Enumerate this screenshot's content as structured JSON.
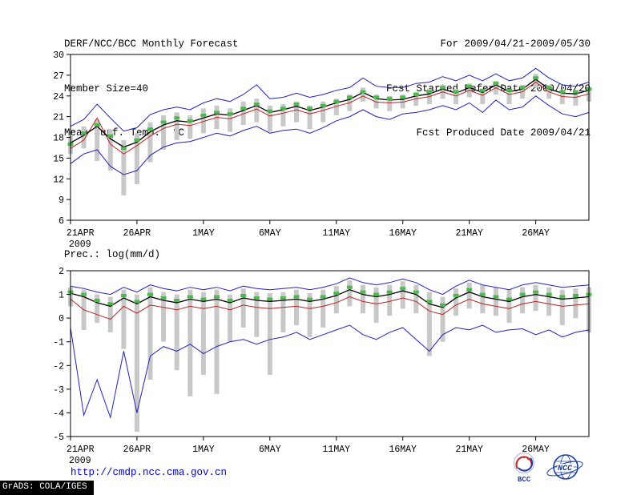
{
  "header": {
    "title": "DERF/NCC/BCC Monthly Forecast",
    "member_size": "Member Size=40",
    "temp_chart_label": "Mean Surf. Temp.: °C",
    "forecast_range": "For 2009/04/21-2009/05/30",
    "refer_date": "Fcst Started Refer Date 2009/04/20",
    "produced_date": "Fcst Produced Date 2009/04/21"
  },
  "precip_chart_label": "Prec.: log(mm/d)",
  "footer": {
    "url": "http://cmdp.ncc.cma.gov.cn",
    "bcc_logo_label": "BCC",
    "ncc_logo_label": "NCC",
    "credit": "GrADS: COLA/IGES"
  },
  "chart_data": [
    {
      "type": "line",
      "title": "Mean Surf. Temp.: °C",
      "ylabel": "°C",
      "ylim": [
        6,
        30
      ],
      "yticks": [
        6,
        9,
        12,
        15,
        18,
        21,
        24,
        27,
        30
      ],
      "x_days": 40,
      "xticks": [
        {
          "day": 0,
          "label": "21APR",
          "sublabel": "2009"
        },
        {
          "day": 5,
          "label": "26APR"
        },
        {
          "day": 10,
          "label": "1MAY"
        },
        {
          "day": 15,
          "label": "6MAY"
        },
        {
          "day": 20,
          "label": "11MAY"
        },
        {
          "day": 25,
          "label": "16MAY"
        },
        {
          "day": 30,
          "label": "21MAY"
        },
        {
          "day": 35,
          "label": "26MAY"
        }
      ],
      "bars": {
        "name": "ensemble-spread-bars",
        "color": "#c8c8c8",
        "low": [
          15.6,
          16.4,
          14.6,
          13.2,
          9.6,
          11.2,
          14.4,
          16.2,
          17.6,
          17.8,
          18.6,
          19.2,
          18.8,
          19.8,
          20.2,
          18.8,
          19.6,
          20.2,
          19.2,
          20.2,
          21.2,
          21.8,
          23.2,
          22.2,
          21.8,
          22.2,
          22.6,
          22.8,
          23.6,
          22.8,
          23.8,
          22.8,
          24.2,
          22.8,
          23.6,
          25.2,
          23.6,
          22.8,
          22.6,
          23.2
        ],
        "high": [
          18.2,
          19.6,
          20.6,
          19.2,
          17.6,
          18.6,
          20.2,
          21.2,
          21.6,
          21.2,
          22.2,
          22.6,
          22.2,
          23.2,
          23.6,
          22.6,
          22.8,
          23.2,
          22.6,
          23.2,
          23.6,
          24.2,
          25.2,
          24.2,
          24.0,
          24.2,
          24.6,
          25.0,
          25.6,
          25.0,
          25.8,
          25.0,
          26.2,
          25.0,
          25.6,
          27.2,
          25.6,
          24.8,
          24.8,
          25.2
        ]
      },
      "series": [
        {
          "name": "ensemble-max",
          "style": "line",
          "color": "#2222bb",
          "width": 1,
          "values": [
            19.6,
            20.6,
            22.8,
            20.8,
            18.9,
            19.4,
            21.3,
            22.0,
            22.4,
            22.0,
            23.0,
            23.6,
            23.2,
            24.2,
            25.6,
            23.6,
            23.8,
            24.4,
            23.8,
            24.2,
            24.8,
            25.2,
            26.6,
            25.4,
            25.2,
            25.2,
            25.8,
            26.0,
            26.8,
            26.2,
            27.0,
            26.2,
            27.2,
            26.2,
            26.6,
            28.0,
            26.6,
            25.6,
            25.4,
            26.0
          ]
        },
        {
          "name": "ensemble-min",
          "style": "line",
          "color": "#2222bb",
          "width": 1,
          "values": [
            14.2,
            15.6,
            16.2,
            13.8,
            12.6,
            13.2,
            15.4,
            16.6,
            17.2,
            17.4,
            18.0,
            18.6,
            18.2,
            19.0,
            19.6,
            18.6,
            19.0,
            19.2,
            18.6,
            19.4,
            20.4,
            21.0,
            22.0,
            21.0,
            20.6,
            21.4,
            21.6,
            22.0,
            22.6,
            22.0,
            23.0,
            21.6,
            23.4,
            22.0,
            22.4,
            24.0,
            22.6,
            21.4,
            21.0,
            21.6
          ]
        },
        {
          "name": "control-run",
          "style": "line",
          "color": "#bb2222",
          "width": 1,
          "values": [
            16.4,
            17.6,
            20.8,
            17.0,
            15.6,
            16.8,
            18.2,
            19.3,
            19.9,
            19.7,
            20.3,
            20.9,
            20.7,
            21.4,
            22.1,
            21.1,
            21.5,
            22.0,
            21.4,
            21.9,
            22.5,
            23.0,
            24.0,
            23.1,
            23.0,
            23.1,
            23.6,
            23.9,
            24.6,
            24.0,
            24.8,
            24.1,
            25.2,
            24.2,
            24.6,
            26.0,
            24.6,
            23.9,
            23.8,
            24.3
          ]
        },
        {
          "name": "ensemble-mean",
          "style": "line",
          "color": "#000000",
          "width": 1.3,
          "values": [
            17.2,
            18.3,
            19.6,
            17.8,
            16.6,
            17.3,
            18.8,
            19.8,
            20.4,
            20.2,
            20.8,
            21.4,
            21.2,
            21.9,
            22.6,
            21.6,
            22.0,
            22.5,
            21.9,
            22.4,
            23.0,
            23.5,
            24.5,
            23.6,
            23.4,
            23.5,
            24.0,
            24.3,
            25.0,
            24.4,
            25.2,
            24.5,
            25.6,
            24.6,
            25.0,
            26.4,
            25.0,
            24.4,
            24.3,
            24.8
          ]
        },
        {
          "name": "ensemble-median",
          "style": "squares",
          "color": "#4db84d",
          "values": [
            17.0,
            18.6,
            19.8,
            18.2,
            16.4,
            17.6,
            19.2,
            20.2,
            20.8,
            20.4,
            21.2,
            21.6,
            21.4,
            22.2,
            22.8,
            21.8,
            22.2,
            22.8,
            22.2,
            22.6,
            23.2,
            23.8,
            24.6,
            23.8,
            23.6,
            23.8,
            24.2,
            24.6,
            25.2,
            24.6,
            25.4,
            24.8,
            25.8,
            24.8,
            25.2,
            26.6,
            25.2,
            24.6,
            24.6,
            25.0
          ]
        }
      ]
    },
    {
      "type": "line",
      "title": "Prec.: log(mm/d)",
      "ylabel": "log(mm/d)",
      "ylim": [
        -5,
        2
      ],
      "yticks": [
        -5,
        -4,
        -3,
        -2,
        -1,
        0,
        1,
        2
      ],
      "x_days": 40,
      "xticks": [
        {
          "day": 0,
          "label": "21APR",
          "sublabel": "2009"
        },
        {
          "day": 5,
          "label": "26APR"
        },
        {
          "day": 10,
          "label": "1MAY"
        },
        {
          "day": 15,
          "label": "6MAY"
        },
        {
          "day": 20,
          "label": "11MAY"
        },
        {
          "day": 25,
          "label": "16MAY"
        },
        {
          "day": 30,
          "label": "21MAY"
        },
        {
          "day": 35,
          "label": "26MAY"
        }
      ],
      "bars": {
        "name": "ensemble-spread-bars",
        "color": "#c8c8c8",
        "low": [
          0.5,
          -0.5,
          -0.2,
          -0.6,
          -1.3,
          -4.8,
          -2.6,
          -1.0,
          -2.2,
          -3.3,
          -2.4,
          -3.2,
          -1.0,
          -0.4,
          -0.8,
          -2.4,
          -0.6,
          -0.3,
          -0.8,
          -0.4,
          0.2,
          0.5,
          0.2,
          -0.2,
          0.1,
          0.4,
          0.2,
          -1.6,
          -1.0,
          0.1,
          0.4,
          0.2,
          0.1,
          -0.2,
          0.2,
          0.3,
          0.1,
          -0.3,
          0.0,
          -0.6
        ],
        "high": [
          1.3,
          1.2,
          1.0,
          0.9,
          1.2,
          1.0,
          1.3,
          1.1,
          1.0,
          1.2,
          1.1,
          1.2,
          1.0,
          1.25,
          1.1,
          1.05,
          1.1,
          1.2,
          1.05,
          1.2,
          1.35,
          1.6,
          1.4,
          1.3,
          1.4,
          1.55,
          1.4,
          1.1,
          0.9,
          1.25,
          1.5,
          1.4,
          1.3,
          1.2,
          1.3,
          1.4,
          1.3,
          1.2,
          1.25,
          1.3
        ]
      },
      "series": [
        {
          "name": "ensemble-max",
          "style": "line",
          "color": "#2222bb",
          "width": 1,
          "values": [
            1.35,
            1.25,
            1.1,
            1.0,
            1.3,
            1.1,
            1.4,
            1.25,
            1.15,
            1.3,
            1.2,
            1.3,
            1.15,
            1.35,
            1.25,
            1.2,
            1.25,
            1.3,
            1.2,
            1.3,
            1.45,
            1.7,
            1.5,
            1.4,
            1.5,
            1.65,
            1.5,
            1.2,
            1.0,
            1.35,
            1.6,
            1.4,
            1.3,
            1.2,
            1.4,
            1.5,
            1.4,
            1.3,
            1.35,
            1.4
          ]
        },
        {
          "name": "ensemble-min",
          "style": "line",
          "color": "#2222bb",
          "width": 1,
          "values": [
            -0.4,
            -4.1,
            -2.6,
            -4.2,
            -1.4,
            -4.0,
            -1.6,
            -1.2,
            -1.4,
            -1.1,
            -1.5,
            -1.2,
            -1.0,
            -0.9,
            -1.1,
            -0.9,
            -0.8,
            -0.6,
            -0.9,
            -0.7,
            -0.5,
            -0.3,
            -0.7,
            -0.9,
            -0.6,
            -0.4,
            -0.9,
            -1.4,
            -0.7,
            -0.4,
            -0.5,
            -0.3,
            -0.6,
            -0.5,
            -0.45,
            -0.7,
            -0.5,
            -0.8,
            -0.6,
            -0.5
          ]
        },
        {
          "name": "control-run",
          "style": "line",
          "color": "#bb2222",
          "width": 1,
          "values": [
            0.8,
            0.35,
            0.15,
            -0.05,
            0.5,
            0.2,
            0.55,
            0.45,
            0.35,
            0.5,
            0.4,
            0.5,
            0.35,
            0.55,
            0.45,
            0.4,
            0.45,
            0.5,
            0.4,
            0.5,
            0.65,
            0.9,
            0.7,
            0.6,
            0.7,
            0.85,
            0.7,
            0.3,
            0.15,
            0.55,
            0.8,
            0.6,
            0.5,
            0.4,
            0.6,
            0.7,
            0.6,
            0.5,
            0.55,
            0.6
          ]
        },
        {
          "name": "ensemble-mean",
          "style": "line",
          "color": "#000000",
          "width": 1.3,
          "values": [
            1.05,
            0.9,
            0.65,
            0.5,
            0.85,
            0.6,
            0.9,
            0.75,
            0.65,
            0.8,
            0.7,
            0.8,
            0.65,
            0.85,
            0.75,
            0.7,
            0.75,
            0.8,
            0.7,
            0.8,
            0.95,
            1.2,
            1.0,
            0.9,
            1.0,
            1.15,
            1.0,
            0.6,
            0.45,
            0.85,
            1.1,
            0.9,
            0.8,
            0.7,
            0.9,
            1.0,
            0.9,
            0.8,
            0.85,
            0.9
          ]
        },
        {
          "name": "ensemble-median",
          "style": "squares",
          "color": "#4db84d",
          "values": [
            1.1,
            1.0,
            0.75,
            0.6,
            0.95,
            0.7,
            1.0,
            0.85,
            0.75,
            0.9,
            0.8,
            0.9,
            0.75,
            0.95,
            0.85,
            0.8,
            0.85,
            0.9,
            0.8,
            0.9,
            1.05,
            1.3,
            1.1,
            1.0,
            1.1,
            1.25,
            1.1,
            0.7,
            0.55,
            0.95,
            1.2,
            1.0,
            0.9,
            0.8,
            1.0,
            1.1,
            1.0,
            0.9,
            0.95,
            1.0
          ]
        }
      ]
    }
  ]
}
